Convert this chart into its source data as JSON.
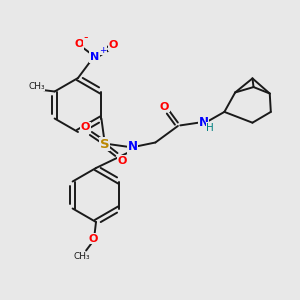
{
  "bg_color": "#e8e8e8",
  "bond_color": "#1a1a1a",
  "bond_width": 1.4,
  "figsize": [
    3.0,
    3.0
  ],
  "dpi": 100,
  "xlim": [
    0,
    10
  ],
  "ylim": [
    0,
    10
  ]
}
